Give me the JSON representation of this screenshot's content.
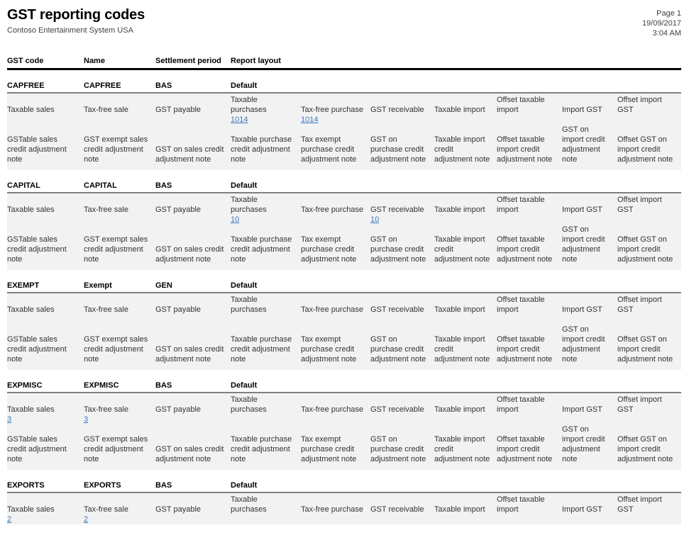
{
  "page": {
    "title": "GST reporting codes",
    "subtitle": "Contoso Entertainment System USA",
    "page_number": "Page 1",
    "date": "19/09/2017",
    "time": "3:04 AM"
  },
  "colors": {
    "link_blue": "#3b78c4",
    "band_gray": "#f2f2f2",
    "section_rule_gray": "#7f7f7f",
    "header_rule_black": "#000000"
  },
  "table": {
    "headers": [
      "GST code",
      "Name",
      "Settlement period",
      "Report layout"
    ],
    "row1_labels": [
      "Taxable sales",
      "Tax-free sale",
      "GST payable",
      "Taxable purchases",
      "Tax-free purchase",
      "GST receivable",
      "Taxable import",
      "Offset taxable import",
      "Import GST",
      "Offset import GST"
    ],
    "row2_labels": [
      "GSTable sales credit adjustment note",
      "GST exempt sales credit adjustment note",
      "GST on sales credit adjustment note",
      "Taxable purchase credit adjustment note",
      "Tax exempt purchase credit adjustment note",
      "GST on purchase credit adjustment note",
      "Taxable import credit adjustment note",
      "Offset taxable import credit adjustment note",
      "GST on import credit adjustment note",
      "Offset GST on import credit adjustment note"
    ],
    "sections": [
      {
        "gst_code": "CAPFREE",
        "name": "CAPFREE",
        "settlement_period": "BAS",
        "report_layout": "Default",
        "links": [
          "",
          "",
          "",
          "1014",
          "1014",
          "",
          "",
          "",
          "",
          ""
        ],
        "truncated": false
      },
      {
        "gst_code": "CAPITAL",
        "name": "CAPITAL",
        "settlement_period": "BAS",
        "report_layout": "Default",
        "links": [
          "",
          "",
          "",
          "10",
          "",
          "10",
          "",
          "",
          "",
          ""
        ],
        "truncated": false
      },
      {
        "gst_code": "EXEMPT",
        "name": "Exempt",
        "settlement_period": "GEN",
        "report_layout": "Default",
        "links": [
          "",
          "",
          "",
          "",
          "",
          "",
          "",
          "",
          "",
          ""
        ],
        "truncated": false
      },
      {
        "gst_code": "EXPMISC",
        "name": "EXPMISC",
        "settlement_period": "BAS",
        "report_layout": "Default",
        "links": [
          "3",
          "3",
          "",
          "",
          "",
          "",
          "",
          "",
          "",
          ""
        ],
        "truncated": false
      },
      {
        "gst_code": "EXPORTS",
        "name": "EXPORTS",
        "settlement_period": "BAS",
        "report_layout": "Default",
        "links": [
          "2",
          "2",
          "",
          "",
          "",
          "",
          "",
          "",
          "",
          ""
        ],
        "truncated": true
      }
    ]
  }
}
